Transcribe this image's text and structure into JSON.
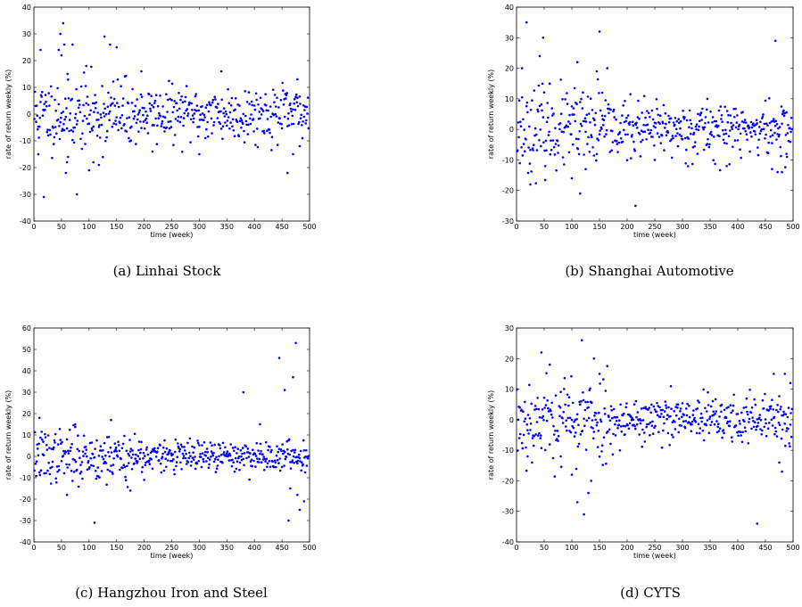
{
  "chart_data": [
    {
      "type": "scatter",
      "caption": "(a) Linhai Stock",
      "xlabel": "time (week)",
      "ylabel": "rate of return weekly (%)",
      "xlim": [
        0,
        500
      ],
      "ylim": [
        -40,
        40
      ],
      "xticks": [
        0,
        50,
        100,
        150,
        200,
        250,
        300,
        350,
        400,
        450,
        500
      ],
      "yticks": [
        -40,
        -30,
        -20,
        -10,
        0,
        10,
        20,
        30,
        40
      ],
      "marker_color": "#0000ff",
      "seed": 11,
      "noise": 6.5,
      "band_after": 180,
      "band_noise": 5,
      "outliers": [
        [
          8,
          -15
        ],
        [
          12,
          24
        ],
        [
          18,
          -31
        ],
        [
          45,
          24
        ],
        [
          48,
          30
        ],
        [
          50,
          22
        ],
        [
          53,
          34
        ],
        [
          55,
          26
        ],
        [
          58,
          -22
        ],
        [
          60,
          -18
        ],
        [
          62,
          -16
        ],
        [
          70,
          26
        ],
        [
          78,
          -30
        ],
        [
          95,
          18
        ],
        [
          100,
          -21
        ],
        [
          108,
          -18
        ],
        [
          118,
          -19
        ],
        [
          128,
          29
        ],
        [
          138,
          26
        ],
        [
          150,
          25
        ],
        [
          195,
          16
        ],
        [
          215,
          -14
        ],
        [
          300,
          -15
        ],
        [
          340,
          16
        ],
        [
          460,
          -22
        ],
        [
          470,
          -15
        ],
        [
          478,
          13
        ],
        [
          482,
          -12
        ]
      ]
    },
    {
      "type": "scatter",
      "caption": "(b) Shanghai Automotive",
      "xlabel": "time (week)",
      "ylabel": "rate of return weekly (%)",
      "xlim": [
        0,
        500
      ],
      "ylim": [
        -30,
        40
      ],
      "xticks": [
        0,
        50,
        100,
        150,
        200,
        250,
        300,
        350,
        400,
        450,
        500
      ],
      "yticks": [
        -30,
        -20,
        -10,
        0,
        10,
        20,
        30,
        40
      ],
      "marker_color": "#0000ff",
      "seed": 23,
      "noise": 6.5,
      "band_after": 170,
      "band_noise": 4.5,
      "outliers": [
        [
          10,
          20
        ],
        [
          18,
          35
        ],
        [
          25,
          -18
        ],
        [
          42,
          24
        ],
        [
          48,
          30
        ],
        [
          52,
          -12
        ],
        [
          60,
          15
        ],
        [
          100,
          -16
        ],
        [
          110,
          22
        ],
        [
          115,
          -21
        ],
        [
          125,
          -13
        ],
        [
          145,
          19
        ],
        [
          150,
          32
        ],
        [
          155,
          12
        ],
        [
          215,
          -25
        ],
        [
          250,
          -10
        ],
        [
          345,
          10
        ],
        [
          380,
          -12
        ],
        [
          462,
          -13
        ],
        [
          468,
          29
        ],
        [
          472,
          -14
        ],
        [
          480,
          -14
        ],
        [
          488,
          -8
        ]
      ]
    },
    {
      "type": "scatter",
      "caption": "(c) Hangzhou Iron and Steel",
      "xlabel": "time (week)",
      "ylabel": "rate of return weekly (%)",
      "xlim": [
        0,
        500
      ],
      "ylim": [
        -40,
        60
      ],
      "xticks": [
        0,
        50,
        100,
        150,
        200,
        250,
        300,
        350,
        400,
        450,
        500
      ],
      "yticks": [
        -40,
        -30,
        -20,
        -10,
        0,
        10,
        20,
        30,
        40,
        50,
        60
      ],
      "marker_color": "#0000ff",
      "seed": 37,
      "noise": 6,
      "band_after": 200,
      "band_noise": 3.5,
      "outliers": [
        [
          10,
          18
        ],
        [
          60,
          -18
        ],
        [
          75,
          15
        ],
        [
          110,
          -31
        ],
        [
          140,
          17
        ],
        [
          175,
          -16
        ],
        [
          380,
          30
        ],
        [
          410,
          15
        ],
        [
          445,
          46
        ],
        [
          455,
          31
        ],
        [
          462,
          -30
        ],
        [
          465,
          -15
        ],
        [
          470,
          37
        ],
        [
          475,
          53
        ],
        [
          478,
          -18
        ],
        [
          482,
          -25
        ],
        [
          490,
          -21
        ]
      ]
    },
    {
      "type": "scatter",
      "caption": "(d) CYTS",
      "xlabel": "time (week)",
      "ylabel": "rate of return weekly (%)",
      "xlim": [
        0,
        500
      ],
      "ylim": [
        -40,
        30
      ],
      "xticks": [
        0,
        50,
        100,
        150,
        200,
        250,
        300,
        350,
        400,
        450,
        500
      ],
      "yticks": [
        -40,
        -30,
        -20,
        -10,
        0,
        10,
        20,
        30
      ],
      "marker_color": "#0000ff",
      "seed": 53,
      "noise": 7,
      "band_after": 165,
      "band_noise": 4,
      "outliers": [
        [
          20,
          -12
        ],
        [
          45,
          22
        ],
        [
          60,
          18
        ],
        [
          80,
          -12
        ],
        [
          100,
          -18
        ],
        [
          110,
          -27
        ],
        [
          118,
          26
        ],
        [
          122,
          -31
        ],
        [
          130,
          -24
        ],
        [
          135,
          -20
        ],
        [
          140,
          20
        ],
        [
          150,
          15
        ],
        [
          435,
          -34
        ],
        [
          465,
          15
        ],
        [
          475,
          -14
        ],
        [
          480,
          -17
        ],
        [
          485,
          15
        ],
        [
          495,
          12
        ]
      ]
    }
  ]
}
